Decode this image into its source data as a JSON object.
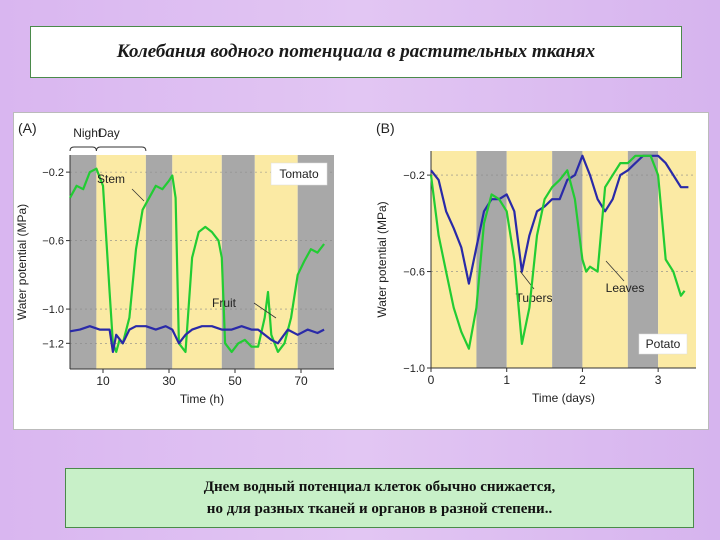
{
  "slide_title": "Колебания водного потенциала в растительных тканях",
  "caption": {
    "line1": "Днем водный потенциал клеток обычно снижается,",
    "line2": "но для разных тканей и органов в разной степени.."
  },
  "colors": {
    "night_band": "#a8a8a8",
    "day_band": "#fbeaa4",
    "green_series": "#22cc33",
    "blue_series": "#2a2aa8"
  },
  "chart_data": [
    {
      "type": "line",
      "panel_label": "(A)",
      "xlabel": "Time (h)",
      "ylabel": "Water potential (MPa)",
      "xlim": [
        0,
        80
      ],
      "ylim": [
        -1.35,
        -0.1
      ],
      "x_ticks": [
        10,
        30,
        50,
        70
      ],
      "y_ticks": [
        -0.2,
        -0.6,
        -1.0,
        -1.2
      ],
      "y_tick_labels": [
        "−0.2",
        "−0.6",
        "−1.0",
        "−1.2"
      ],
      "legend_box": "Tomato",
      "bracket_labels": [
        "Night",
        "Day"
      ],
      "bands": [
        {
          "type": "night",
          "from": 0,
          "to": 8
        },
        {
          "type": "day",
          "from": 8,
          "to": 23
        },
        {
          "type": "night",
          "from": 23,
          "to": 31
        },
        {
          "type": "day",
          "from": 31,
          "to": 46
        },
        {
          "type": "night",
          "from": 46,
          "to": 56
        },
        {
          "type": "day",
          "from": 56,
          "to": 69
        },
        {
          "type": "night",
          "from": 69,
          "to": 80
        }
      ],
      "series": [
        {
          "name": "Stem",
          "color_key": "green_series",
          "x": [
            0,
            2,
            4,
            6,
            8,
            10,
            12,
            13,
            14,
            15,
            16,
            18,
            20,
            22,
            24,
            26,
            28,
            30,
            31,
            32,
            33,
            35,
            37,
            39,
            41,
            43,
            45,
            46,
            47,
            49,
            51,
            53,
            55,
            57,
            59,
            60,
            61,
            63,
            65,
            67,
            69,
            71,
            73,
            75,
            77
          ],
          "y": [
            -0.35,
            -0.28,
            -0.3,
            -0.2,
            -0.18,
            -0.28,
            -0.9,
            -1.2,
            -1.25,
            -1.18,
            -1.2,
            -1.05,
            -0.65,
            -0.42,
            -0.35,
            -0.28,
            -0.3,
            -0.25,
            -0.22,
            -0.35,
            -1.2,
            -1.25,
            -0.7,
            -0.55,
            -0.52,
            -0.55,
            -0.6,
            -0.7,
            -1.2,
            -1.25,
            -1.2,
            -1.18,
            -1.22,
            -1.22,
            -1.05,
            -0.9,
            -1.15,
            -1.25,
            -1.2,
            -1.05,
            -0.8,
            -0.72,
            -0.65,
            -0.67,
            -0.62
          ]
        },
        {
          "name": "Fruit",
          "color_key": "blue_series",
          "x": [
            0,
            3,
            6,
            9,
            12,
            13,
            14,
            16,
            18,
            20,
            23,
            26,
            29,
            31,
            33,
            35,
            37,
            40,
            43,
            46,
            49,
            52,
            55,
            57,
            59,
            61,
            63,
            66,
            69,
            72,
            75,
            77
          ],
          "y": [
            -1.13,
            -1.12,
            -1.1,
            -1.12,
            -1.12,
            -1.25,
            -1.15,
            -1.2,
            -1.12,
            -1.1,
            -1.1,
            -1.12,
            -1.1,
            -1.12,
            -1.2,
            -1.15,
            -1.12,
            -1.1,
            -1.1,
            -1.12,
            -1.12,
            -1.1,
            -1.12,
            -1.12,
            -1.15,
            -1.18,
            -1.2,
            -1.12,
            -1.15,
            -1.12,
            -1.14,
            -1.12
          ]
        }
      ]
    },
    {
      "type": "line",
      "panel_label": "(B)",
      "xlabel": "Time (days)",
      "ylabel": "Water potential (MPa)",
      "xlim": [
        0,
        3.5
      ],
      "ylim": [
        -1.0,
        -0.1
      ],
      "x_ticks": [
        0,
        1,
        2,
        3
      ],
      "y_ticks": [
        -0.2,
        -0.6,
        -1.0
      ],
      "y_tick_labels": [
        "−0.2",
        "−0.6",
        "−1.0"
      ],
      "legend_box": "Potato",
      "bands": [
        {
          "type": "day",
          "from": 0,
          "to": 0.6
        },
        {
          "type": "night",
          "from": 0.6,
          "to": 1.0
        },
        {
          "type": "day",
          "from": 1.0,
          "to": 1.6
        },
        {
          "type": "night",
          "from": 1.6,
          "to": 2.0
        },
        {
          "type": "day",
          "from": 2.0,
          "to": 2.6
        },
        {
          "type": "night",
          "from": 2.6,
          "to": 3.0
        },
        {
          "type": "day",
          "from": 3.0,
          "to": 3.5
        }
      ],
      "series": [
        {
          "name": "Tubers",
          "color_key": "blue_series",
          "x": [
            0,
            0.1,
            0.2,
            0.3,
            0.4,
            0.5,
            0.6,
            0.7,
            0.8,
            0.9,
            1.0,
            1.1,
            1.2,
            1.3,
            1.4,
            1.5,
            1.6,
            1.7,
            1.8,
            1.9,
            2.0,
            2.1,
            2.2,
            2.3,
            2.4,
            2.5,
            2.6,
            2.7,
            2.8,
            2.9,
            3.0,
            3.1,
            3.2,
            3.3,
            3.4
          ],
          "y": [
            -0.18,
            -0.22,
            -0.35,
            -0.42,
            -0.5,
            -0.65,
            -0.5,
            -0.35,
            -0.3,
            -0.3,
            -0.28,
            -0.35,
            -0.6,
            -0.45,
            -0.35,
            -0.33,
            -0.3,
            -0.3,
            -0.22,
            -0.2,
            -0.12,
            -0.2,
            -0.3,
            -0.35,
            -0.3,
            -0.2,
            -0.18,
            -0.15,
            -0.12,
            -0.12,
            -0.12,
            -0.15,
            -0.2,
            -0.25,
            -0.25
          ]
        },
        {
          "name": "Leaves",
          "color_key": "green_series",
          "x": [
            0,
            0.1,
            0.2,
            0.3,
            0.4,
            0.5,
            0.6,
            0.7,
            0.8,
            0.9,
            1.0,
            1.1,
            1.2,
            1.3,
            1.4,
            1.5,
            1.6,
            1.7,
            1.8,
            1.9,
            2.0,
            2.05,
            2.1,
            2.2,
            2.3,
            2.4,
            2.5,
            2.6,
            2.7,
            2.8,
            2.9,
            3.0,
            3.1,
            3.2,
            3.3,
            3.35
          ],
          "y": [
            -0.2,
            -0.45,
            -0.6,
            -0.75,
            -0.85,
            -0.92,
            -0.75,
            -0.4,
            -0.28,
            -0.3,
            -0.35,
            -0.55,
            -0.9,
            -0.75,
            -0.45,
            -0.3,
            -0.25,
            -0.22,
            -0.18,
            -0.3,
            -0.55,
            -0.6,
            -0.58,
            -0.6,
            -0.25,
            -0.2,
            -0.15,
            -0.15,
            -0.12,
            -0.12,
            -0.12,
            -0.2,
            -0.55,
            -0.6,
            -0.7,
            -0.68
          ]
        }
      ]
    }
  ]
}
